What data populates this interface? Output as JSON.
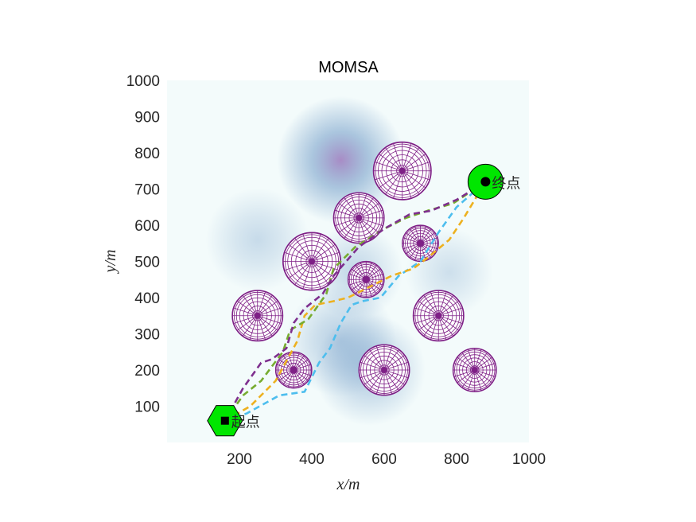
{
  "chart_data": {
    "type": "scatter",
    "title": "MOMSA",
    "xlabel": "x/m",
    "ylabel": "y/m",
    "xlim": [
      0,
      1000
    ],
    "ylim": [
      0,
      1000
    ],
    "xticks": [
      "200",
      "400",
      "600",
      "800",
      "1000"
    ],
    "yticks": [
      "100",
      "200",
      "300",
      "400",
      "500",
      "600",
      "700",
      "800",
      "900",
      "1000"
    ],
    "grid": false,
    "background": {
      "description_free_field": "blue Gaussian terrain threat field",
      "base_color": "#f3fbfb",
      "threat_color": "#4a7fb8",
      "peak_color": "#8a5fb0",
      "blobs": [
        {
          "x": 480,
          "y": 780,
          "sigma": 80,
          "weight": 0.95
        },
        {
          "x": 250,
          "y": 560,
          "sigma": 65,
          "weight": 0.35
        },
        {
          "x": 520,
          "y": 470,
          "sigma": 60,
          "weight": 0.4
        },
        {
          "x": 480,
          "y": 280,
          "sigma": 70,
          "weight": 0.5
        },
        {
          "x": 560,
          "y": 200,
          "sigma": 70,
          "weight": 0.55
        },
        {
          "x": 780,
          "y": 470,
          "sigma": 55,
          "weight": 0.3
        }
      ]
    },
    "obstacles": [
      {
        "x": 650,
        "y": 750,
        "r": 80
      },
      {
        "x": 530,
        "y": 620,
        "r": 70
      },
      {
        "x": 400,
        "y": 500,
        "r": 80
      },
      {
        "x": 700,
        "y": 550,
        "r": 50
      },
      {
        "x": 550,
        "y": 450,
        "r": 50
      },
      {
        "x": 250,
        "y": 350,
        "r": 70
      },
      {
        "x": 750,
        "y": 350,
        "r": 70
      },
      {
        "x": 350,
        "y": 200,
        "r": 50
      },
      {
        "x": 600,
        "y": 200,
        "r": 70
      },
      {
        "x": 850,
        "y": 200,
        "r": 60
      }
    ],
    "obstacle_color": "#7e1f86",
    "start": {
      "x": 160,
      "y": 60,
      "label": "起点"
    },
    "goal": {
      "x": 880,
      "y": 720,
      "label": "终点"
    },
    "marker_color": "#00e600",
    "series": [
      {
        "color": "#4dbeee",
        "x": [
          160,
          220,
          310,
          380,
          420,
          450,
          480,
          510,
          540,
          590,
          640,
          700,
          750,
          800,
          880
        ],
        "y": [
          60,
          80,
          130,
          140,
          220,
          260,
          330,
          380,
          390,
          400,
          460,
          500,
          580,
          650,
          720
        ]
      },
      {
        "color": "#edb120",
        "x": [
          160,
          230,
          300,
          360,
          380,
          410,
          460,
          500,
          560,
          620,
          680,
          720,
          780,
          820,
          880
        ],
        "y": [
          60,
          100,
          170,
          280,
          350,
          380,
          390,
          400,
          430,
          460,
          480,
          510,
          560,
          620,
          720
        ]
      },
      {
        "color": "#77ac30",
        "x": [
          160,
          210,
          260,
          290,
          320,
          340,
          390,
          440,
          460,
          520,
          600,
          660,
          720,
          790,
          880
        ],
        "y": [
          60,
          130,
          170,
          210,
          250,
          310,
          340,
          410,
          480,
          540,
          590,
          620,
          640,
          660,
          720
        ]
      },
      {
        "color": "#7e2f8e",
        "x": [
          160,
          210,
          260,
          290,
          330,
          350,
          380,
          430,
          460,
          530,
          600,
          670,
          730,
          800,
          880
        ],
        "y": [
          60,
          150,
          220,
          230,
          260,
          330,
          370,
          410,
          460,
          540,
          590,
          630,
          640,
          670,
          720
        ]
      }
    ]
  }
}
